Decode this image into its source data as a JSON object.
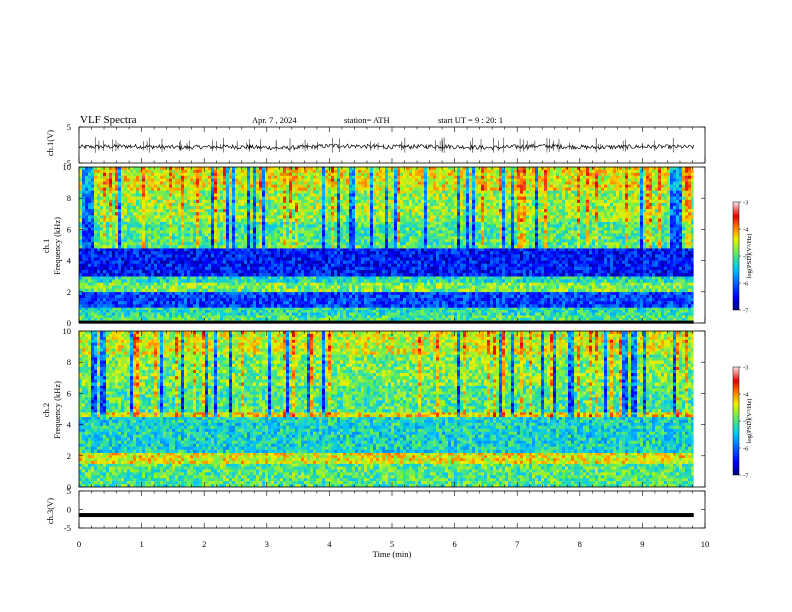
{
  "header": {
    "title": "VLF Spectra",
    "date": "Apr. 7 , 2024",
    "station": "station= ATH",
    "start": "start UT = 9 : 20: 1"
  },
  "chart_data": [
    {
      "type": "line",
      "panel": "ch1-waveform",
      "ylabel": "ch.1(V)",
      "yticks": [
        "5",
        "-5"
      ],
      "ylim": [
        -5,
        5
      ],
      "series": [
        {
          "values_approx": [
            0.0,
            0.2,
            -0.1,
            0.1,
            -0.3,
            0.4,
            0.0,
            0.2,
            -0.2,
            0.3,
            -0.1,
            0.1,
            0.0
          ]
        }
      ]
    },
    {
      "type": "heatmap",
      "panel": "ch1-spectrogram",
      "ylabel_top": "ch.1",
      "ylabel": "Frequency (kHz)",
      "yticks": [
        "0",
        "2",
        "4",
        "6",
        "8",
        "10"
      ],
      "ylim": [
        0,
        10
      ],
      "bands_logpsd": [
        {
          "f": [
            0.0,
            0.5
          ],
          "level": -5.0
        },
        {
          "f": [
            0.5,
            1.0
          ],
          "level": -5.2
        },
        {
          "f": [
            1.0,
            2.0
          ],
          "level": -6.2
        },
        {
          "f": [
            2.0,
            2.6
          ],
          "level": -4.8
        },
        {
          "f": [
            2.6,
            3.0
          ],
          "level": -5.2
        },
        {
          "f": [
            3.0,
            4.8
          ],
          "level": -6.4
        },
        {
          "f": [
            4.8,
            6.5
          ],
          "level": -5.0
        },
        {
          "f": [
            6.5,
            8.5
          ],
          "level": -4.7
        },
        {
          "f": [
            8.5,
            10.0
          ],
          "level": -4.4
        }
      ],
      "colorbar": {
        "label": "log(PSD)(V²/Hz)",
        "ticks": [
          "-3",
          "-4",
          "-5",
          "-6",
          "-7"
        ],
        "range": [
          -7,
          -3
        ]
      }
    },
    {
      "type": "heatmap",
      "panel": "ch2-spectrogram",
      "ylabel_top": "ch.2",
      "ylabel": "Frequency (kHz)",
      "yticks": [
        "0",
        "2",
        "4",
        "6",
        "8",
        "10"
      ],
      "ylim": [
        0,
        10
      ],
      "bands_logpsd": [
        {
          "f": [
            0.0,
            1.5
          ],
          "level": -5.0
        },
        {
          "f": [
            1.5,
            2.2
          ],
          "level": -4.4
        },
        {
          "f": [
            2.2,
            4.5
          ],
          "level": -5.3
        },
        {
          "f": [
            4.5,
            4.8
          ],
          "level": -4.3
        },
        {
          "f": [
            4.8,
            6.5
          ],
          "level": -5.0
        },
        {
          "f": [
            6.5,
            8.5
          ],
          "level": -4.8
        },
        {
          "f": [
            8.5,
            10.0
          ],
          "level": -4.5
        }
      ],
      "colorbar": {
        "label": "log(PSD)(V²/Hz)",
        "ticks": [
          "-3",
          "-4",
          "-5",
          "-6",
          "-7"
        ],
        "range": [
          -7,
          -3
        ]
      }
    },
    {
      "type": "line",
      "panel": "ch3-waveform",
      "ylabel": "ch.3(V)",
      "yticks": [
        "5",
        "0",
        "-5"
      ],
      "ylim": [
        -5,
        5
      ],
      "series": [
        {
          "values_approx": [
            -1.5,
            -1.5,
            -1.5,
            -1.5,
            -1.5
          ]
        }
      ]
    }
  ],
  "x_axis": {
    "label": "Time (min)",
    "ticks": [
      "0",
      "1",
      "2",
      "3",
      "4",
      "5",
      "6",
      "7",
      "8",
      "9",
      "10"
    ],
    "xlim": [
      0,
      10
    ],
    "data_end": 9.82
  },
  "colors": {
    "scale": [
      "#000080",
      "#0000ff",
      "#0060ff",
      "#00c0ff",
      "#30e0a0",
      "#80f040",
      "#f0f000",
      "#ff8000",
      "#e00000",
      "#ffd0d0"
    ]
  }
}
